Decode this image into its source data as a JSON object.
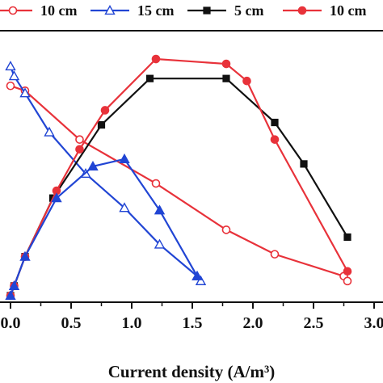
{
  "chart_data": {
    "type": "line",
    "xlabel": "Current density (A/m³)",
    "ylabel": "",
    "title": "",
    "xlim": [
      0,
      3.0
    ],
    "x_ticks": [
      "0.0",
      "0.5",
      "1.0",
      "1.5",
      "2.0",
      "2.5",
      "3.0"
    ],
    "x_tick_values": [
      0,
      0.5,
      1.0,
      1.5,
      2.0,
      2.5,
      3.0
    ],
    "legend_position": "top",
    "series": [
      {
        "name": "10 cm",
        "kind": "voltage",
        "color": "#e8323a",
        "marker": "circle-open",
        "x": [
          0.0,
          0.12,
          0.57,
          1.2,
          1.78,
          2.18,
          2.75,
          2.78
        ],
        "y": [
          0.88,
          0.86,
          0.66,
          0.48,
          0.29,
          0.19,
          0.1,
          0.08
        ]
      },
      {
        "name": "15 cm",
        "kind": "voltage",
        "color": "#2145d4",
        "marker": "triangle-open",
        "x": [
          0.0,
          0.03,
          0.12,
          0.32,
          0.62,
          0.94,
          1.23,
          1.54,
          1.57
        ],
        "y": [
          0.96,
          0.92,
          0.85,
          0.69,
          0.52,
          0.38,
          0.23,
          0.1,
          0.08
        ]
      },
      {
        "name": "5 cm",
        "kind": "power",
        "color": "#111111",
        "marker": "square-filled",
        "x": [
          0.0,
          0.03,
          0.12,
          0.35,
          0.75,
          1.15,
          1.78,
          2.18,
          2.42,
          2.78
        ],
        "y": [
          0.02,
          0.06,
          0.18,
          0.42,
          0.72,
          0.91,
          0.91,
          0.73,
          0.56,
          0.26
        ]
      },
      {
        "name": "10 cm",
        "kind": "power",
        "color": "#e8323a",
        "marker": "circle-filled",
        "x": [
          0.0,
          0.03,
          0.12,
          0.38,
          0.57,
          0.78,
          1.2,
          1.78,
          1.95,
          2.18,
          2.78
        ],
        "y": [
          0.02,
          0.06,
          0.18,
          0.45,
          0.62,
          0.78,
          0.99,
          0.97,
          0.9,
          0.66,
          0.12
        ]
      },
      {
        "name": "15 cm",
        "kind": "power",
        "color": "#2145d4",
        "marker": "triangle-filled",
        "x": [
          0.0,
          0.03,
          0.12,
          0.38,
          0.68,
          0.94,
          1.23,
          1.54
        ],
        "y": [
          0.02,
          0.06,
          0.18,
          0.42,
          0.55,
          0.58,
          0.37,
          0.1
        ]
      }
    ],
    "legend": [
      {
        "label": "10 cm",
        "color": "#e8323a",
        "marker": "circle-open"
      },
      {
        "label": "15 cm",
        "color": "#2145d4",
        "marker": "triangle-open"
      },
      {
        "label": "5 cm",
        "color": "#111111",
        "marker": "square-filled"
      },
      {
        "label": "10 cm",
        "color": "#e8323a",
        "marker": "circle-filled"
      }
    ]
  }
}
